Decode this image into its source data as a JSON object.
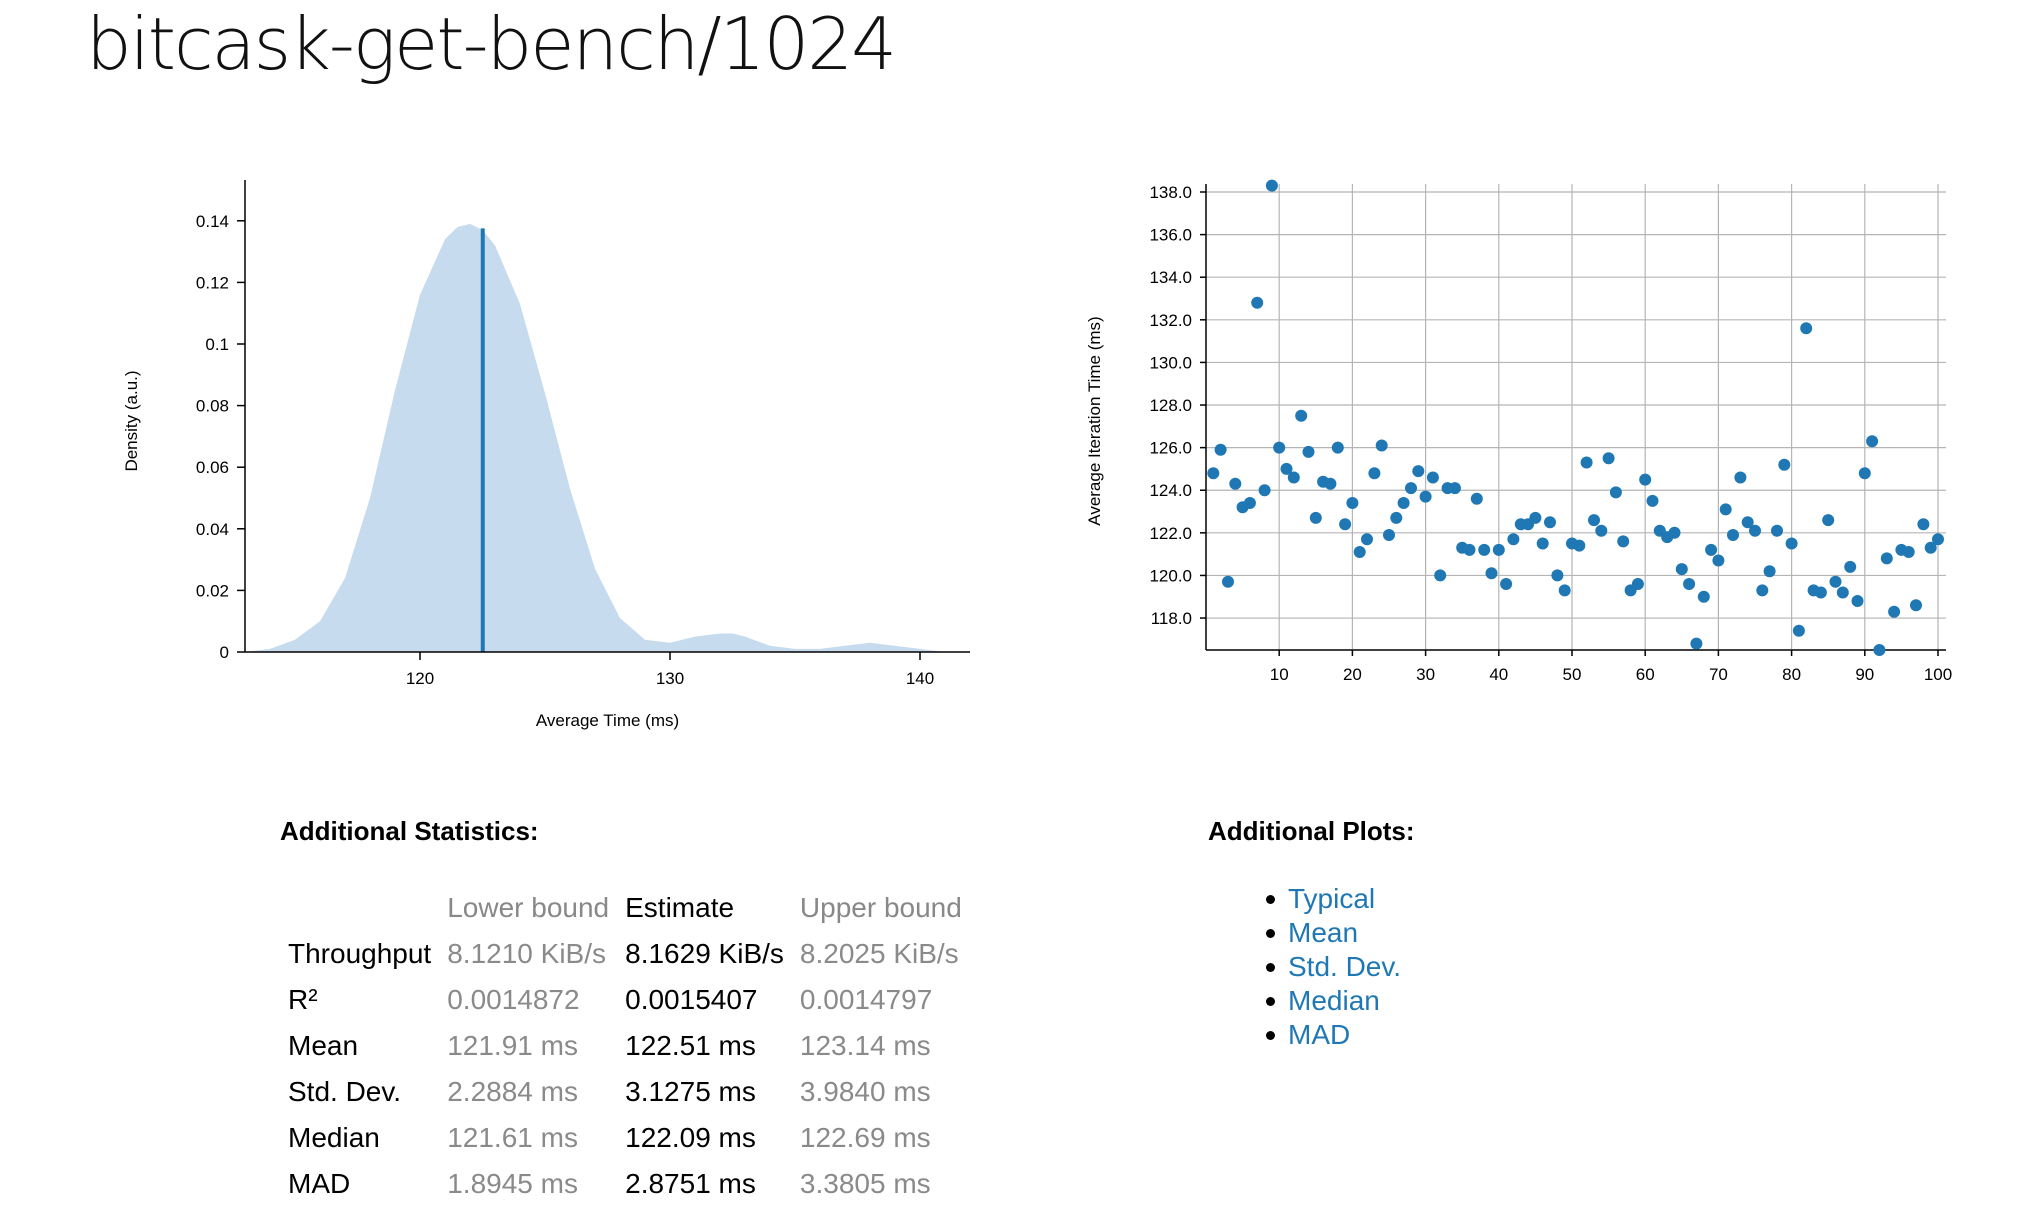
{
  "page": {
    "title": "bitcask-get-bench/1024"
  },
  "colors": {
    "accent": "#1f78b4",
    "density_fill": "#c6dbee",
    "grid": "#b5b5b5",
    "muted": "#8a8a8a"
  },
  "chart_data": [
    {
      "type": "area",
      "name": "pdf",
      "xlabel": "Average Time (ms)",
      "ylabel": "Density (a.u.)",
      "xlim": [
        113.0,
        142.0
      ],
      "ylim": [
        0,
        0.15
      ],
      "x_ticks": [
        "120",
        "130",
        "140"
      ],
      "y_ticks": [
        "0",
        "0.02",
        "0.04",
        "0.06",
        "0.08",
        "0.1",
        "0.12",
        "0.14"
      ],
      "mean_line_x": 122.51,
      "x": [
        113.0,
        114.0,
        115.0,
        116.0,
        117.0,
        118.0,
        119.0,
        120.0,
        121.0,
        121.5,
        122.0,
        122.5,
        123.0,
        124.0,
        125.0,
        126.0,
        127.0,
        128.0,
        129.0,
        130.0,
        131.0,
        132.0,
        132.5,
        133.0,
        134.0,
        135.0,
        136.0,
        137.0,
        138.0,
        139.0,
        140.0,
        141.0
      ],
      "y": [
        0.0,
        0.001,
        0.004,
        0.01,
        0.024,
        0.05,
        0.085,
        0.116,
        0.134,
        0.138,
        0.139,
        0.137,
        0.132,
        0.113,
        0.084,
        0.053,
        0.027,
        0.011,
        0.004,
        0.003,
        0.005,
        0.006,
        0.006,
        0.005,
        0.002,
        0.001,
        0.001,
        0.002,
        0.003,
        0.002,
        0.001,
        0.0
      ]
    },
    {
      "type": "scatter",
      "name": "iteration times",
      "xlabel": "",
      "ylabel": "Average Iteration Time (ms)",
      "xlim": [
        0,
        100
      ],
      "ylim": [
        116.5,
        138.0
      ],
      "x_ticks": [
        "10",
        "20",
        "30",
        "40",
        "50",
        "60",
        "70",
        "80",
        "90",
        "100"
      ],
      "y_ticks": [
        "118.0",
        "120.0",
        "122.0",
        "124.0",
        "126.0",
        "128.0",
        "130.0",
        "132.0",
        "134.0",
        "136.0",
        "138.0"
      ],
      "x": [
        1,
        2,
        3,
        4,
        5,
        6,
        7,
        8,
        9,
        10,
        11,
        12,
        13,
        14,
        15,
        16,
        17,
        18,
        19,
        20,
        21,
        22,
        23,
        24,
        25,
        26,
        27,
        28,
        29,
        30,
        31,
        32,
        33,
        34,
        35,
        36,
        37,
        38,
        39,
        40,
        41,
        42,
        43,
        44,
        45,
        46,
        47,
        48,
        49,
        50,
        51,
        52,
        53,
        54,
        55,
        56,
        57,
        58,
        59,
        60,
        61,
        62,
        63,
        64,
        65,
        66,
        67,
        68,
        69,
        70,
        71,
        72,
        73,
        74,
        75,
        76,
        77,
        78,
        79,
        80,
        81,
        82,
        83,
        84,
        85,
        86,
        87,
        88,
        89,
        90,
        91,
        92,
        93,
        94,
        95,
        96,
        97,
        98,
        99,
        100
      ],
      "y": [
        124.8,
        125.9,
        119.7,
        124.3,
        123.2,
        123.4,
        132.8,
        124.0,
        138.3,
        126.0,
        125.0,
        124.6,
        127.5,
        125.8,
        122.7,
        124.4,
        124.3,
        126.0,
        122.4,
        123.4,
        121.1,
        121.7,
        124.8,
        126.1,
        121.9,
        122.7,
        123.4,
        124.1,
        124.9,
        123.7,
        124.6,
        120.0,
        124.1,
        124.1,
        121.3,
        121.2,
        123.6,
        121.2,
        120.1,
        121.2,
        119.6,
        121.7,
        122.4,
        122.4,
        122.7,
        121.5,
        122.5,
        120.0,
        119.3,
        121.5,
        121.4,
        125.3,
        122.6,
        122.1,
        125.5,
        123.9,
        121.6,
        119.3,
        119.6,
        124.5,
        123.5,
        122.1,
        121.8,
        122.0,
        120.3,
        119.6,
        116.8,
        119.0,
        121.2,
        120.7,
        123.1,
        121.9,
        124.6,
        122.5,
        122.1,
        119.3,
        120.2,
        122.1,
        125.2,
        121.5,
        117.4,
        131.6,
        119.3,
        119.2,
        122.6,
        119.7,
        119.2,
        120.4,
        118.8,
        124.8,
        126.3,
        116.5,
        120.8,
        118.3,
        121.2,
        121.1,
        118.6,
        122.4,
        121.3,
        121.7
      ]
    }
  ],
  "stats": {
    "heading": "Additional Statistics:",
    "columns": [
      "",
      "Lower bound",
      "Estimate",
      "Upper bound"
    ],
    "rows": [
      {
        "label": "Throughput",
        "lower": "8.1210 KiB/s",
        "estimate": "8.1629 KiB/s",
        "upper": "8.2025 KiB/s"
      },
      {
        "label": "R²",
        "lower": "0.0014872",
        "estimate": "0.0015407",
        "upper": "0.0014797"
      },
      {
        "label": "Mean",
        "lower": "121.91 ms",
        "estimate": "122.51 ms",
        "upper": "123.14 ms"
      },
      {
        "label": "Std. Dev.",
        "lower": "2.2884 ms",
        "estimate": "3.1275 ms",
        "upper": "3.9840 ms"
      },
      {
        "label": "Median",
        "lower": "121.61 ms",
        "estimate": "122.09 ms",
        "upper": "122.69 ms"
      },
      {
        "label": "MAD",
        "lower": "1.8945 ms",
        "estimate": "2.8751 ms",
        "upper": "3.3805 ms"
      }
    ]
  },
  "plots": {
    "heading": "Additional Plots:",
    "links": [
      "Typical",
      "Mean",
      "Std. Dev.",
      "Median",
      "MAD"
    ]
  }
}
